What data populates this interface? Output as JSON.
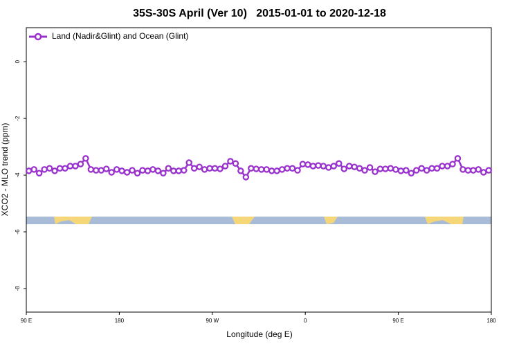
{
  "chart_data": {
    "type": "line",
    "title": "35S-30S April (Ver 10)   2015-01-01 to 2020-12-18",
    "xlabel": "Longitude (deg E)",
    "ylabel": "XCO2 - MLO trend (ppm)",
    "xlim": [
      90,
      540
    ],
    "ylim": [
      -8.83,
      1.2
    ],
    "xticks": [
      {
        "value": 90,
        "label": "90 E"
      },
      {
        "value": 180,
        "label": "180"
      },
      {
        "value": 270,
        "label": "90 W"
      },
      {
        "value": 360,
        "label": "0"
      },
      {
        "value": 450,
        "label": "90 E"
      },
      {
        "value": 540,
        "label": "180"
      }
    ],
    "yticks": [
      0,
      -2,
      -4,
      -6,
      -8
    ],
    "legend": "upper left",
    "x": [
      92.5,
      97.5,
      102.5,
      107.5,
      112.5,
      117.5,
      122.5,
      127.5,
      132.5,
      137.5,
      142.5,
      147.5,
      152.5,
      157.5,
      162.5,
      167.5,
      172.5,
      177.5,
      182.5,
      187.5,
      192.5,
      197.5,
      202.5,
      207.5,
      212.5,
      217.5,
      222.5,
      227.5,
      232.5,
      237.5,
      242.5,
      247.5,
      252.5,
      257.5,
      262.5,
      267.5,
      272.5,
      277.5,
      282.5,
      287.5,
      292.5,
      297.5,
      302.5,
      307.5,
      312.5,
      317.5,
      322.5,
      327.5,
      332.5,
      337.5,
      342.5,
      347.5,
      352.5,
      357.5,
      362.5,
      367.5,
      372.5,
      377.5,
      382.5,
      387.5,
      392.5,
      397.5,
      402.5,
      407.5,
      412.5,
      417.5,
      422.5,
      427.5,
      432.5,
      437.5,
      442.5,
      447.5,
      452.5,
      457.5,
      462.5,
      467.5,
      472.5,
      477.5,
      482.5,
      487.5,
      492.5,
      497.5,
      502.5,
      507.5,
      512.5,
      517.5,
      522.5,
      527.5,
      532.5,
      537.5
    ],
    "series": [
      {
        "name": "Land (Nadir&Glint) and Ocean (Glint)",
        "color": "#9a32cd",
        "values": [
          -3.85,
          -3.8,
          -3.93,
          -3.8,
          -3.76,
          -3.85,
          -3.76,
          -3.76,
          -3.68,
          -3.68,
          -3.61,
          -3.41,
          -3.8,
          -3.83,
          -3.83,
          -3.78,
          -3.9,
          -3.8,
          -3.85,
          -3.9,
          -3.83,
          -3.93,
          -3.83,
          -3.85,
          -3.8,
          -3.85,
          -3.93,
          -3.76,
          -3.85,
          -3.85,
          -3.83,
          -3.56,
          -3.76,
          -3.71,
          -3.8,
          -3.76,
          -3.76,
          -3.78,
          -3.68,
          -3.51,
          -3.59,
          -3.85,
          -4.07,
          -3.76,
          -3.78,
          -3.8,
          -3.8,
          -3.85,
          -3.85,
          -3.8,
          -3.76,
          -3.76,
          -3.83,
          -3.61,
          -3.63,
          -3.68,
          -3.66,
          -3.68,
          -3.73,
          -3.68,
          -3.59,
          -3.78,
          -3.68,
          -3.71,
          -3.76,
          -3.83,
          -3.73,
          -3.88,
          -3.78,
          -3.78,
          -3.76,
          -3.8,
          -3.85,
          -3.83,
          -3.93,
          -3.83,
          -3.76,
          -3.83,
          -3.76,
          -3.76,
          -3.68,
          -3.68,
          -3.61,
          -3.41,
          -3.8,
          -3.83,
          -3.83,
          -3.8,
          -3.9,
          -3.83
        ]
      }
    ]
  }
}
